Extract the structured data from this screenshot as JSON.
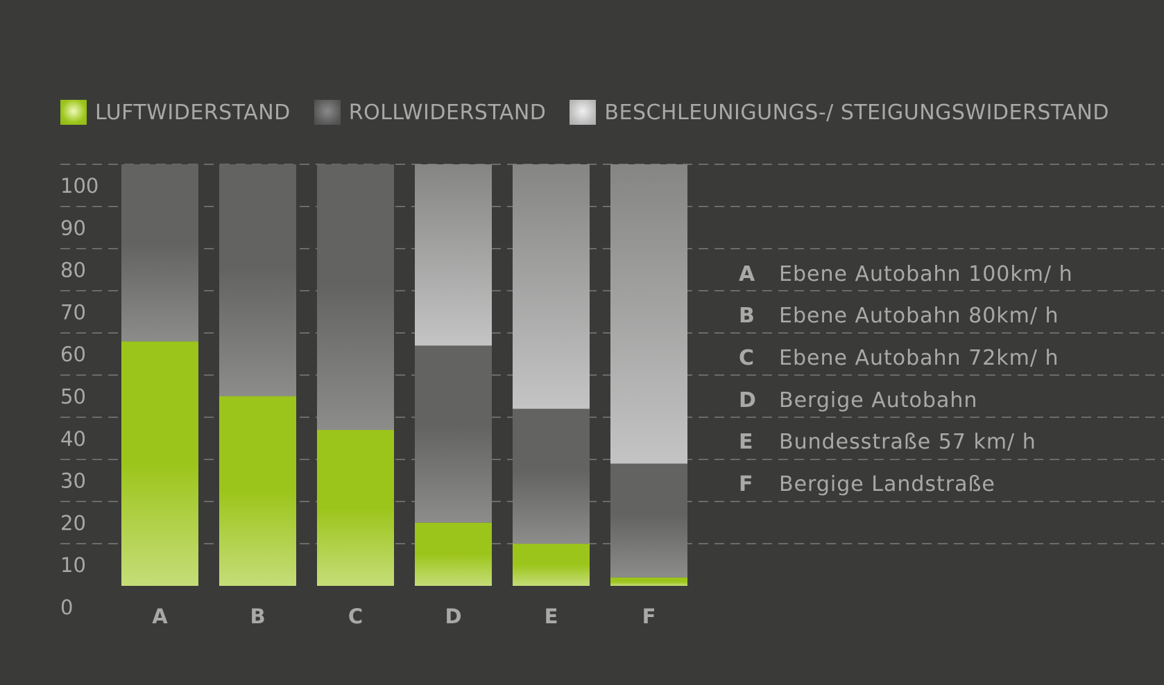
{
  "chart_data": {
    "type": "bar",
    "stacked": true,
    "categories": [
      "A",
      "B",
      "C",
      "D",
      "E",
      "F"
    ],
    "series": [
      {
        "name": "LUFTWIDERSTAND",
        "color": "#9cc51b",
        "values": [
          58,
          45,
          37,
          15,
          10,
          2
        ]
      },
      {
        "name": "ROLLWIDERSTAND",
        "color": "#606060",
        "values": [
          42,
          55,
          63,
          42,
          32,
          27
        ]
      },
      {
        "name": "BESCHLEUNIGUNGS-/ STEIGUNGSWIDERSTAND",
        "color": "#b5b5b5",
        "values": [
          0,
          0,
          0,
          43,
          58,
          71
        ]
      }
    ],
    "yticks": [
      0,
      10,
      20,
      30,
      40,
      50,
      60,
      70,
      80,
      90,
      100
    ],
    "ylim": [
      0,
      100
    ],
    "grid": true,
    "legend_position": "top",
    "descriptions": [
      {
        "key": "A",
        "text": "Ebene Autobahn 100km/ h"
      },
      {
        "key": "B",
        "text": "Ebene Autobahn 80km/ h"
      },
      {
        "key": "C",
        "text": "Ebene Autobahn 72km/ h"
      },
      {
        "key": "D",
        "text": "Bergige Autobahn"
      },
      {
        "key": "E",
        "text": "Bundesstraße 57 km/ h"
      },
      {
        "key": "F",
        "text": "Bergige Landstraße"
      }
    ]
  },
  "colors": {
    "background": "#3a3a39",
    "text": "#a9a9a8",
    "gridline": "#7c7c7b"
  }
}
